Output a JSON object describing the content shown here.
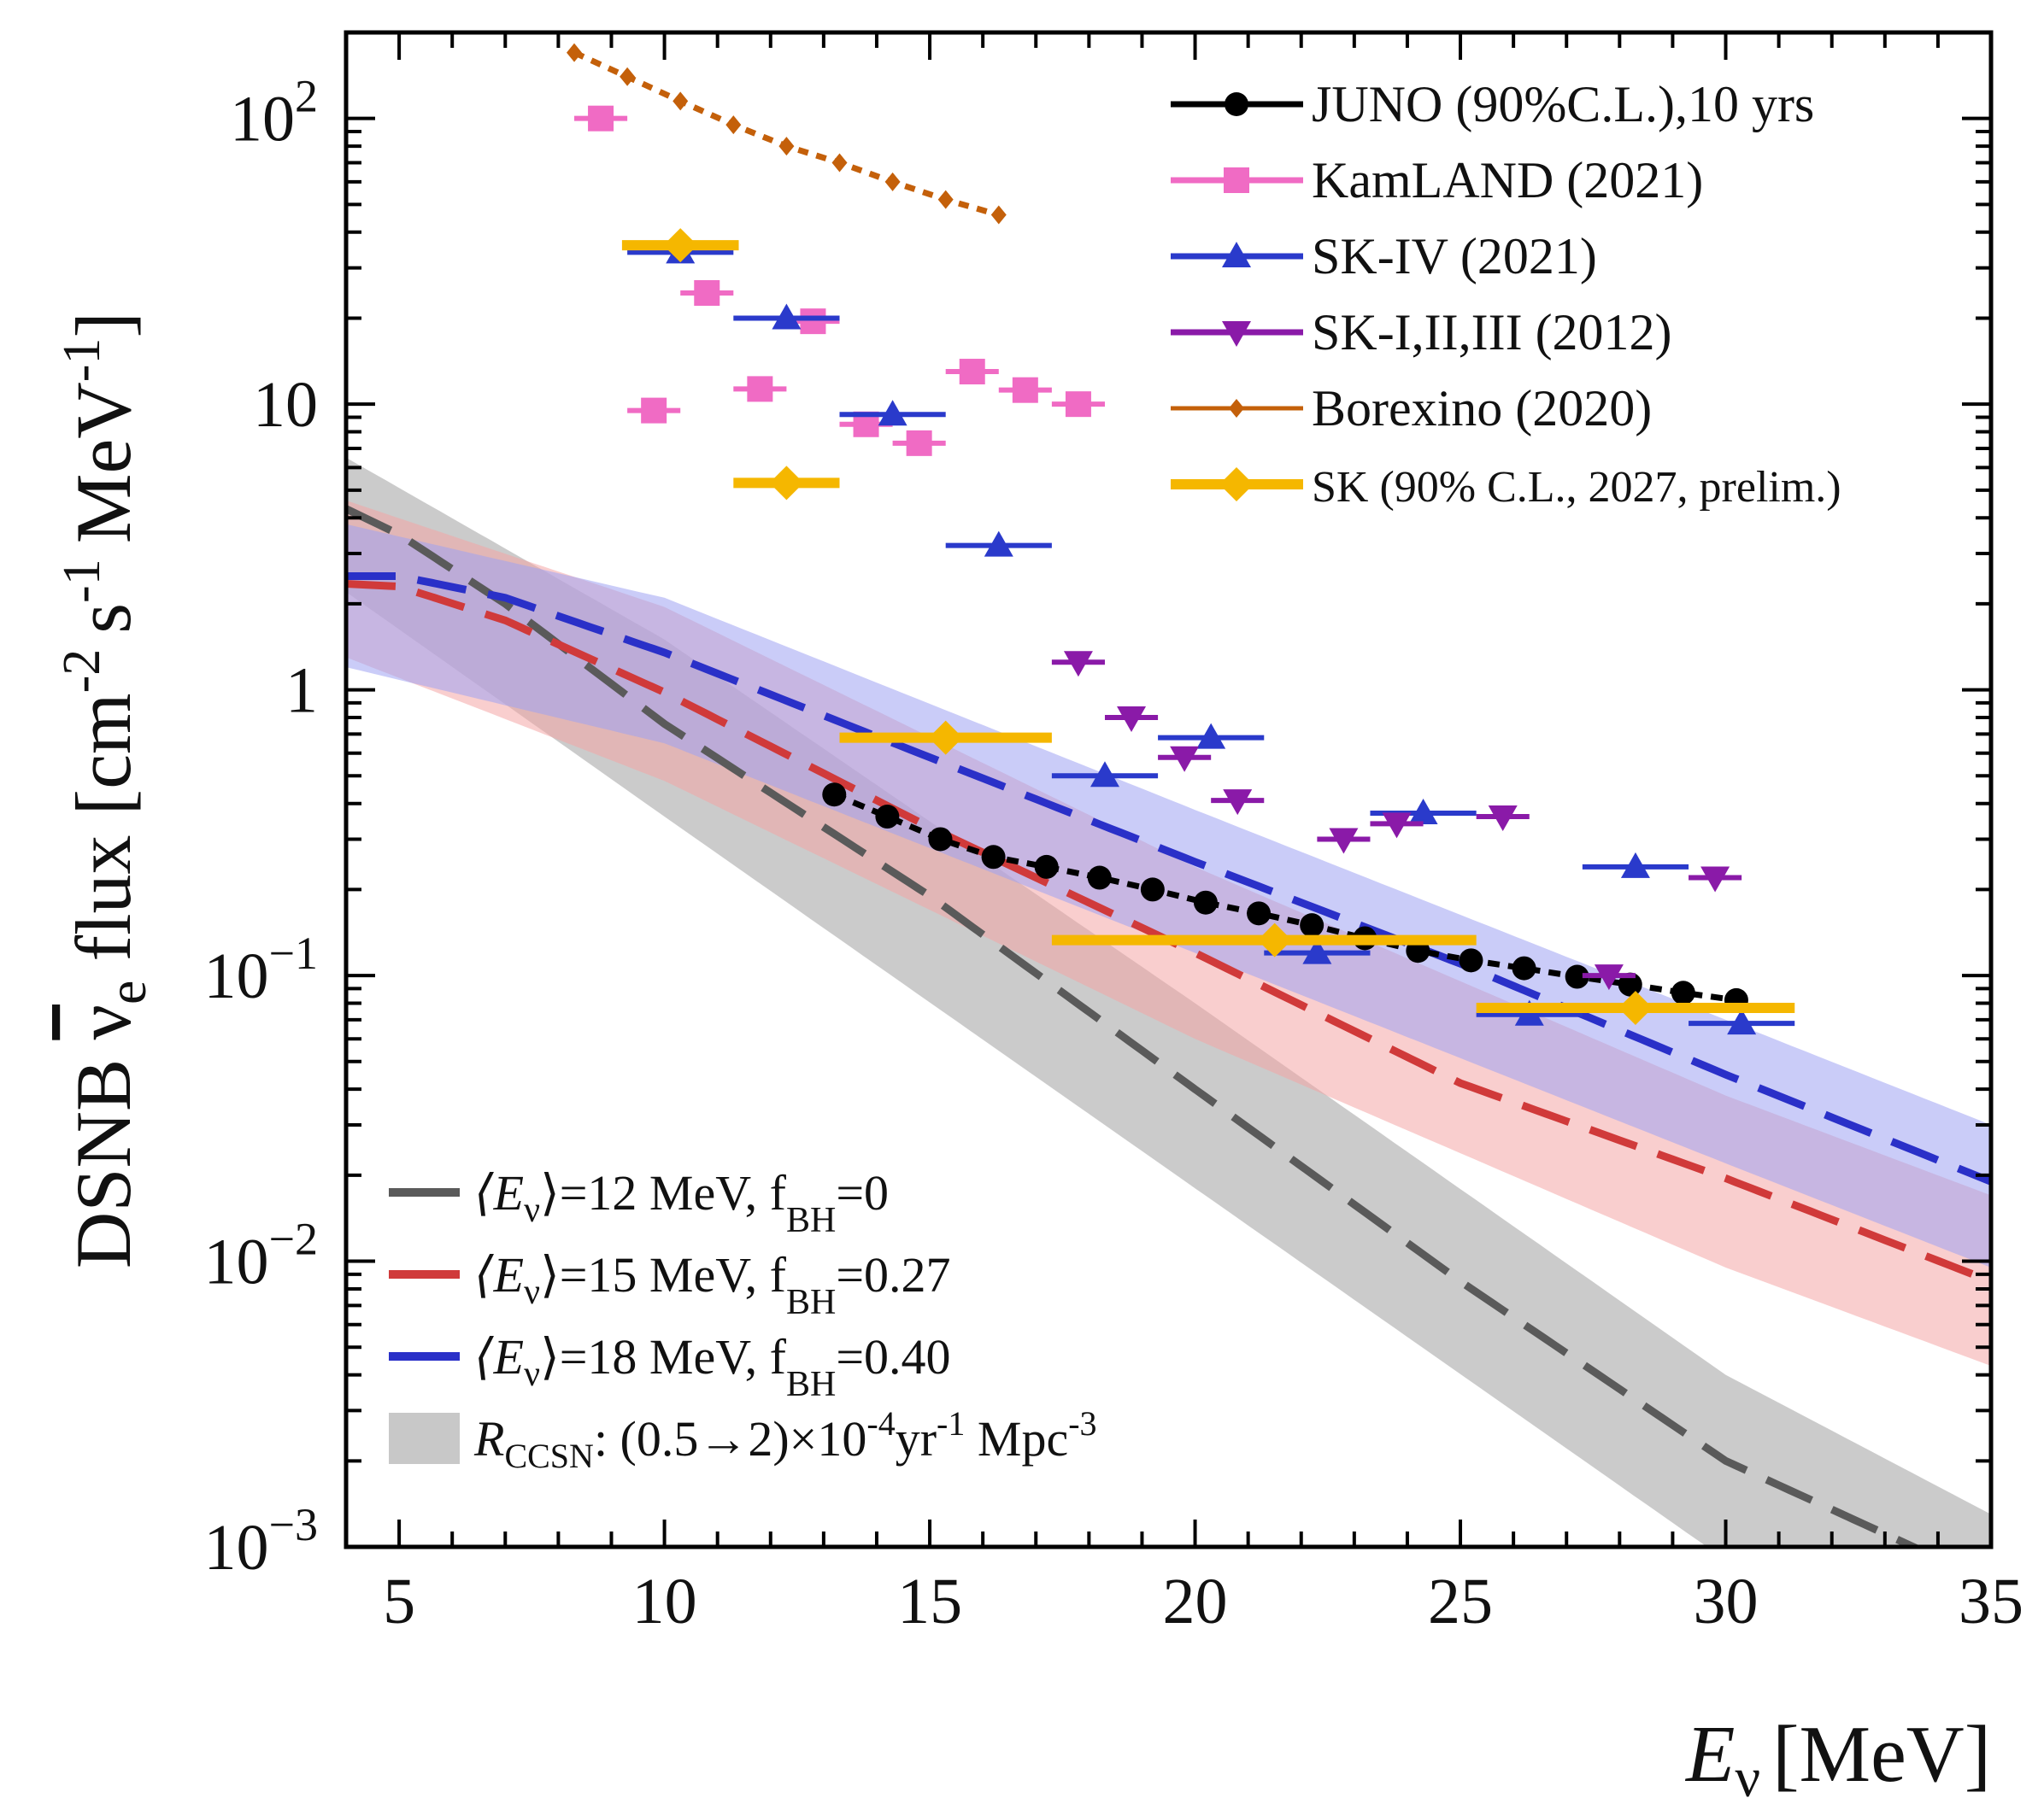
{
  "chart_data": {
    "type": "scatter",
    "xlabel_symbol": "E",
    "xlabel_sub": "ν",
    "xlabel_unit": "[MeV]",
    "ylabel_prefix": "DSNB",
    "ylabel_nu": "ν",
    "ylabel_sub": "e",
    "ylabel_flux": "flux [cm",
    "ylabel_exp1": "-2",
    "ylabel_s": "s",
    "ylabel_exp2": "-1",
    "ylabel_mev": "MeV",
    "ylabel_exp3": "-1",
    "ylabel_close": "]",
    "xlim": [
      4,
      35
    ],
    "ylim": [
      0.001,
      200
    ],
    "yscale": "log",
    "x_ticks": [
      5,
      10,
      15,
      20,
      25,
      30,
      35
    ],
    "x_tick_labels": [
      "5",
      "10",
      "15",
      "20",
      "25",
      "30",
      "35"
    ],
    "y_ticks": [
      {
        "value": 100,
        "label": "10",
        "sup": "2"
      },
      {
        "value": 10,
        "label": "10",
        "sup": ""
      },
      {
        "value": 1,
        "label": "1",
        "sup": ""
      },
      {
        "value": 0.1,
        "label": "10",
        "sup": "−1"
      },
      {
        "value": 0.01,
        "label": "10",
        "sup": "−2"
      },
      {
        "value": 0.001,
        "label": "10",
        "sup": "−3"
      }
    ],
    "legend_top": [
      {
        "label": "JUNO (90%C.L.),10 yrs",
        "series": "juno"
      },
      {
        "label": "KamLAND (2021)",
        "series": "kamland"
      },
      {
        "label": "SK-IV (2021)",
        "series": "sk4"
      },
      {
        "label": "SK-I,II,III (2012)",
        "series": "sk123"
      },
      {
        "label": "Borexino (2020)",
        "series": "borexino"
      },
      {
        "label": "SK (90% C.L., 2027, prelim.)",
        "series": "skfuture"
      }
    ],
    "legend_bottom": [
      {
        "pre": "⟨E",
        "sub": "ν",
        "mid": "⟩=12 MeV, f",
        "sub2": "BH",
        "post": "=0",
        "color": "#5a5a5a"
      },
      {
        "pre": "⟨E",
        "sub": "ν",
        "mid": "⟩=15 MeV, f",
        "sub2": "BH",
        "post": "=0.27",
        "color": "#d03a3a"
      },
      {
        "pre": "⟨E",
        "sub": "ν",
        "mid": "⟩=18 MeV, f",
        "sub2": "BH",
        "post": "=0.40",
        "color": "#2a30c8"
      },
      {
        "pre": "R",
        "sub": "CCSN",
        "mid": ": (0.5→2)×10",
        "sup": "-4",
        "post2": "yr",
        "sup2": "-1",
        "post3": " Mpc",
        "sup3": "-3",
        "color": "#c8c8c8"
      }
    ],
    "series": [
      {
        "name": "juno",
        "color": "#000000",
        "marker": "circle",
        "points": [
          [
            13.2,
            0.43
          ],
          [
            14.2,
            0.36
          ],
          [
            15.2,
            0.3
          ],
          [
            16.2,
            0.26
          ],
          [
            17.2,
            0.24
          ],
          [
            18.2,
            0.22
          ],
          [
            19.2,
            0.2
          ],
          [
            20.2,
            0.18
          ],
          [
            21.2,
            0.165
          ],
          [
            22.2,
            0.15
          ],
          [
            23.2,
            0.135
          ],
          [
            24.2,
            0.122
          ],
          [
            25.2,
            0.113
          ],
          [
            26.2,
            0.106
          ],
          [
            27.2,
            0.099
          ],
          [
            28.2,
            0.093
          ],
          [
            29.2,
            0.087
          ],
          [
            30.2,
            0.082
          ]
        ],
        "halfwidth": 0.5
      },
      {
        "name": "kamland",
        "color": "#f06bc4",
        "marker": "square",
        "points": [
          [
            8.8,
            100
          ],
          [
            9.8,
            9.5
          ],
          [
            10.8,
            24.5
          ],
          [
            11.8,
            11.3
          ],
          [
            12.8,
            19.5
          ],
          [
            13.8,
            8.5
          ],
          [
            14.8,
            7.3
          ],
          [
            15.8,
            13
          ],
          [
            16.8,
            11.2
          ],
          [
            17.8,
            10
          ]
        ],
        "halfwidth": 0.5
      },
      {
        "name": "sk4",
        "color": "#2a3acb",
        "marker": "triangle-up",
        "points": [
          [
            10.3,
            34
          ],
          [
            12.3,
            20
          ],
          [
            14.3,
            9.2
          ],
          [
            16.3,
            3.2
          ],
          [
            18.3,
            0.5
          ],
          [
            20.3,
            0.68
          ],
          [
            22.3,
            0.12
          ],
          [
            24.3,
            0.37
          ],
          [
            26.3,
            0.073
          ],
          [
            28.3,
            0.24
          ],
          [
            30.3,
            0.068
          ]
        ],
        "halfwidth": 1.0
      },
      {
        "name": "sk123",
        "color": "#8a1aa8",
        "marker": "triangle-down",
        "points": [
          [
            17.8,
            1.25
          ],
          [
            18.8,
            0.8
          ],
          [
            19.8,
            0.58
          ],
          [
            20.8,
            0.41
          ],
          [
            22.8,
            0.3
          ],
          [
            23.8,
            0.34
          ],
          [
            25.8,
            0.36
          ],
          [
            27.8,
            0.1
          ],
          [
            29.8,
            0.22
          ]
        ],
        "halfwidth": 0.5
      },
      {
        "name": "borexino",
        "color": "#c4600a",
        "marker": "diamond-small",
        "points": [
          [
            8.3,
            170
          ],
          [
            9.3,
            140
          ],
          [
            10.3,
            115
          ],
          [
            11.3,
            95
          ],
          [
            12.3,
            80
          ],
          [
            13.3,
            70
          ],
          [
            14.3,
            60
          ],
          [
            15.3,
            52
          ],
          [
            16.3,
            46
          ]
        ],
        "halfwidth": 0.5
      },
      {
        "name": "skfuture",
        "color": "#f5b700",
        "marker": "diamond",
        "points": [
          [
            10.3,
            36
          ],
          [
            12.3,
            5.3
          ],
          [
            15.3,
            0.68
          ],
          [
            21.5,
            0.133
          ],
          [
            28.3,
            0.077
          ]
        ],
        "xranges": [
          [
            9.2,
            11.4
          ],
          [
            11.3,
            13.3
          ],
          [
            13.3,
            17.3
          ],
          [
            17.3,
            25.3
          ],
          [
            25.3,
            31.3
          ]
        ]
      }
    ],
    "curves": [
      {
        "name": "Eν=12 MeV, fBH=0",
        "color": "#5a5a5a",
        "band_color": "#a8a8a8",
        "points": [
          [
            4,
            4.3
          ],
          [
            5,
            3.5
          ],
          [
            7,
            2.0
          ],
          [
            10,
            0.76
          ],
          [
            15,
            0.19
          ],
          [
            20,
            0.04
          ],
          [
            25,
            0.0085
          ],
          [
            30,
            0.002
          ],
          [
            33.8,
            0.00095
          ]
        ],
        "band": [
          [
            4,
            2.2,
            6.5
          ],
          [
            10,
            0.36,
            1.5
          ],
          [
            20,
            0.018,
            0.08
          ],
          [
            30,
            0.0009,
            0.004
          ],
          [
            35,
            0.0003,
            0.0013
          ]
        ]
      },
      {
        "name": "Eν=15 MeV, fBH=0.27",
        "color": "#d03a3a",
        "band_color": "#f4a6a6",
        "points": [
          [
            4,
            2.35
          ],
          [
            5,
            2.3
          ],
          [
            7,
            1.75
          ],
          [
            10,
            0.98
          ],
          [
            15,
            0.33
          ],
          [
            20,
            0.12
          ],
          [
            25,
            0.042
          ],
          [
            30,
            0.0195
          ],
          [
            35,
            0.0085
          ]
        ],
        "band": [
          [
            4,
            1.3,
            4.6
          ],
          [
            10,
            0.48,
            1.95
          ],
          [
            20,
            0.06,
            0.24
          ],
          [
            30,
            0.0095,
            0.038
          ],
          [
            35,
            0.0043,
            0.017
          ]
        ]
      },
      {
        "name": "Eν=18 MeV, fBH=0.40",
        "color": "#2a30c8",
        "band_color": "#9ea2f3",
        "points": [
          [
            4,
            2.5
          ],
          [
            5,
            2.5
          ],
          [
            7,
            2.1
          ],
          [
            10,
            1.35
          ],
          [
            15,
            0.58
          ],
          [
            20,
            0.25
          ],
          [
            25,
            0.11
          ],
          [
            30,
            0.045
          ],
          [
            35,
            0.019
          ]
        ],
        "band": [
          [
            4,
            1.2,
            3.8
          ],
          [
            10,
            0.65,
            2.1
          ],
          [
            20,
            0.12,
            0.38
          ],
          [
            30,
            0.022,
            0.07
          ],
          [
            35,
            0.0095,
            0.03
          ]
        ]
      }
    ]
  }
}
